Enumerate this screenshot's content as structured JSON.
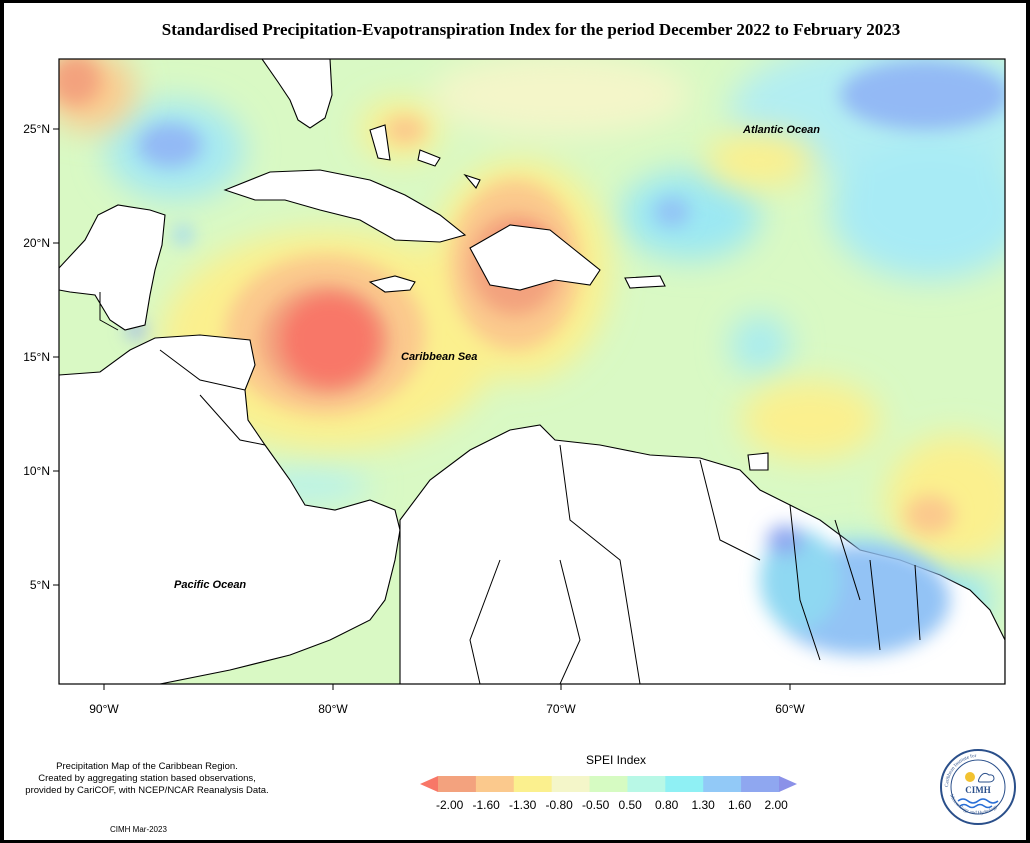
{
  "title": "Standardised Precipitation-Evapotranspiration Index for the period December 2022 to February 2023",
  "axes": {
    "y_ticks": [
      "25°N",
      "20°N",
      "15°N",
      "10°N",
      "5°N"
    ],
    "x_ticks": [
      "90°W",
      "80°W",
      "70°W",
      "60°W"
    ]
  },
  "ocean_labels": {
    "atlantic": "Atlantic Ocean",
    "caribbean": "Caribbean Sea",
    "pacific": "Pacific Ocean"
  },
  "legend": {
    "title": "SPEI Index",
    "labels": [
      "-2.00",
      "-1.60",
      "-1.30",
      "-0.80",
      "-0.50",
      "0.50",
      "0.80",
      "1.30",
      "1.60",
      "2.00"
    ],
    "colors": [
      "#f87767",
      "#f3a27e",
      "#fbc98d",
      "#fbf08e",
      "#f4f6c9",
      "#d6fbc2",
      "#b8f8e6",
      "#8ff0f4",
      "#92c9f7",
      "#8fa7f0",
      "#8b91e8"
    ]
  },
  "note": {
    "line1": "Precipitation Map of the Caribbean Region.",
    "line2": "Created by aggregating station based observations,",
    "line3": "provided by CariCOF, with NCEP/NCAR Reanalysis Data."
  },
  "credit": "CIMH Mar-2023",
  "logo": {
    "abbr": "CIMH",
    "ring_top": "Caribbean Institute for",
    "ring_bottom": "Meteorology and Hydrology"
  }
}
